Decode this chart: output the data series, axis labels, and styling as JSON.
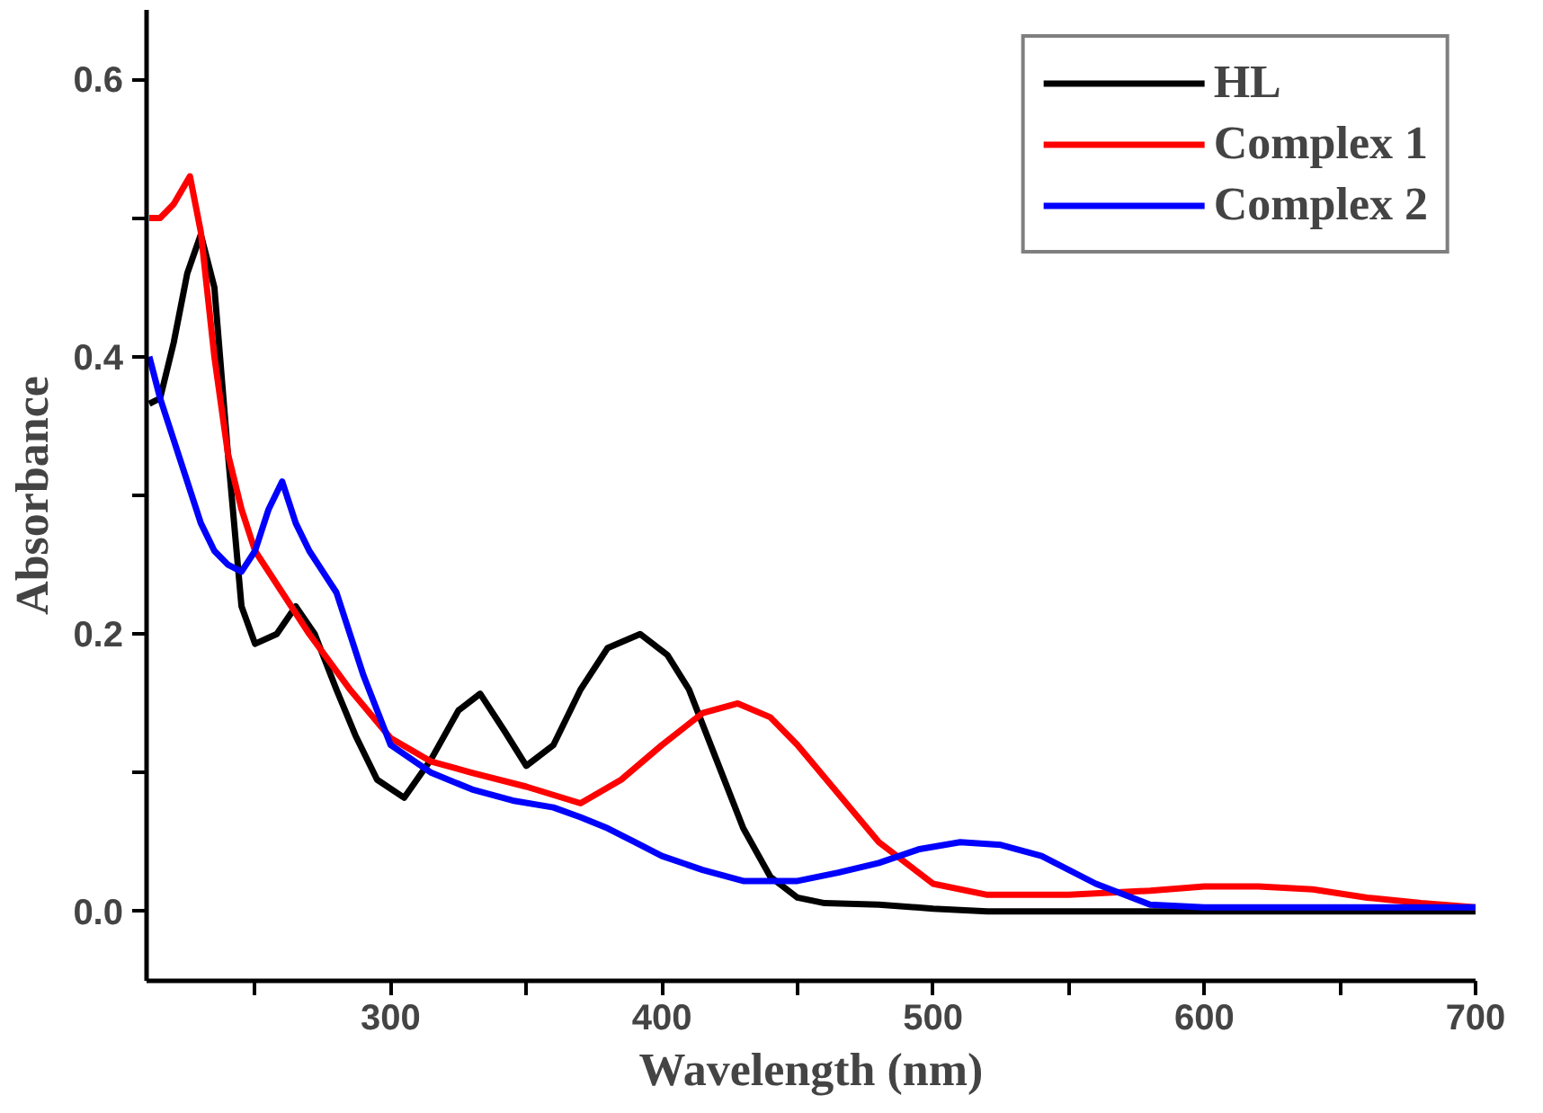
{
  "chart_data": {
    "type": "line",
    "xlabel": "Wavelength (nm)",
    "ylabel": "Absorbance",
    "xlim": [
      210,
      700
    ],
    "ylim": [
      -0.05,
      0.65
    ],
    "xticks": [
      {
        "value": 250,
        "label": null
      },
      300,
      {
        "value": 350,
        "label": null
      },
      400,
      {
        "value": 450,
        "label": null
      },
      500,
      {
        "value": 550,
        "label": null
      },
      600,
      {
        "value": 650,
        "label": null
      },
      700
    ],
    "yticks": [
      {
        "value": 0,
        "label": "0.0"
      },
      {
        "value": 0.1,
        "label": null
      },
      {
        "value": 0.2,
        "label": "0.2"
      },
      {
        "value": 0.3,
        "label": null
      },
      {
        "value": 0.4,
        "label": "0.4"
      },
      {
        "value": 0.5,
        "label": null
      },
      {
        "value": 0.6,
        "label": "0.6"
      }
    ],
    "grid": false,
    "legend": "top right",
    "marker": "none",
    "line_style": "solid",
    "series": [
      {
        "name": "HL",
        "color": "#000000",
        "x": [
          211,
          215,
          220,
          225,
          230,
          235,
          240,
          245,
          250,
          258,
          265,
          272,
          280,
          287,
          295,
          305,
          315,
          325,
          333,
          342,
          350,
          360,
          370,
          380,
          392,
          402,
          410,
          420,
          430,
          440,
          450,
          460,
          480,
          500,
          520,
          560,
          600,
          650,
          700
        ],
        "values": [
          0.366,
          0.37,
          0.41,
          0.46,
          0.488,
          0.45,
          0.33,
          0.22,
          0.193,
          0.2,
          0.22,
          0.2,
          0.16,
          0.127,
          0.095,
          0.082,
          0.11,
          0.145,
          0.157,
          0.13,
          0.105,
          0.12,
          0.16,
          0.19,
          0.2,
          0.185,
          0.16,
          0.11,
          0.06,
          0.025,
          0.01,
          0.006,
          0.005,
          0.002,
          0,
          0,
          0,
          0,
          0
        ]
      },
      {
        "name": "Complex 1",
        "color": "#ff0000",
        "x": [
          211,
          215,
          220,
          226,
          230,
          235,
          240,
          245,
          250,
          260,
          270,
          285,
          300,
          315,
          330,
          350,
          370,
          385,
          400,
          415,
          428,
          440,
          450,
          465,
          480,
          500,
          520,
          550,
          580,
          600,
          620,
          640,
          660,
          680,
          700
        ],
        "values": [
          0.5,
          0.5,
          0.51,
          0.53,
          0.49,
          0.4,
          0.33,
          0.29,
          0.26,
          0.23,
          0.2,
          0.16,
          0.125,
          0.108,
          0.1,
          0.09,
          0.078,
          0.095,
          0.12,
          0.143,
          0.15,
          0.14,
          0.12,
          0.085,
          0.05,
          0.02,
          0.012,
          0.012,
          0.015,
          0.018,
          0.018,
          0.016,
          0.01,
          0.006,
          0.003
        ]
      },
      {
        "name": "Complex 2",
        "color": "#0000ff",
        "x": [
          211,
          215,
          220,
          225,
          230,
          235,
          240,
          245,
          250,
          255,
          260,
          265,
          270,
          275,
          280,
          290,
          300,
          315,
          330,
          345,
          360,
          370,
          380,
          390,
          400,
          415,
          430,
          450,
          465,
          480,
          495,
          510,
          525,
          540,
          560,
          580,
          600,
          650,
          700
        ],
        "values": [
          0.4,
          0.37,
          0.34,
          0.31,
          0.28,
          0.26,
          0.25,
          0.245,
          0.26,
          0.29,
          0.31,
          0.28,
          0.26,
          0.245,
          0.23,
          0.17,
          0.12,
          0.1,
          0.088,
          0.08,
          0.075,
          0.068,
          0.06,
          0.05,
          0.04,
          0.03,
          0.022,
          0.022,
          0.028,
          0.035,
          0.045,
          0.05,
          0.048,
          0.04,
          0.02,
          0.005,
          0.003,
          0.003,
          0.003
        ]
      }
    ]
  }
}
